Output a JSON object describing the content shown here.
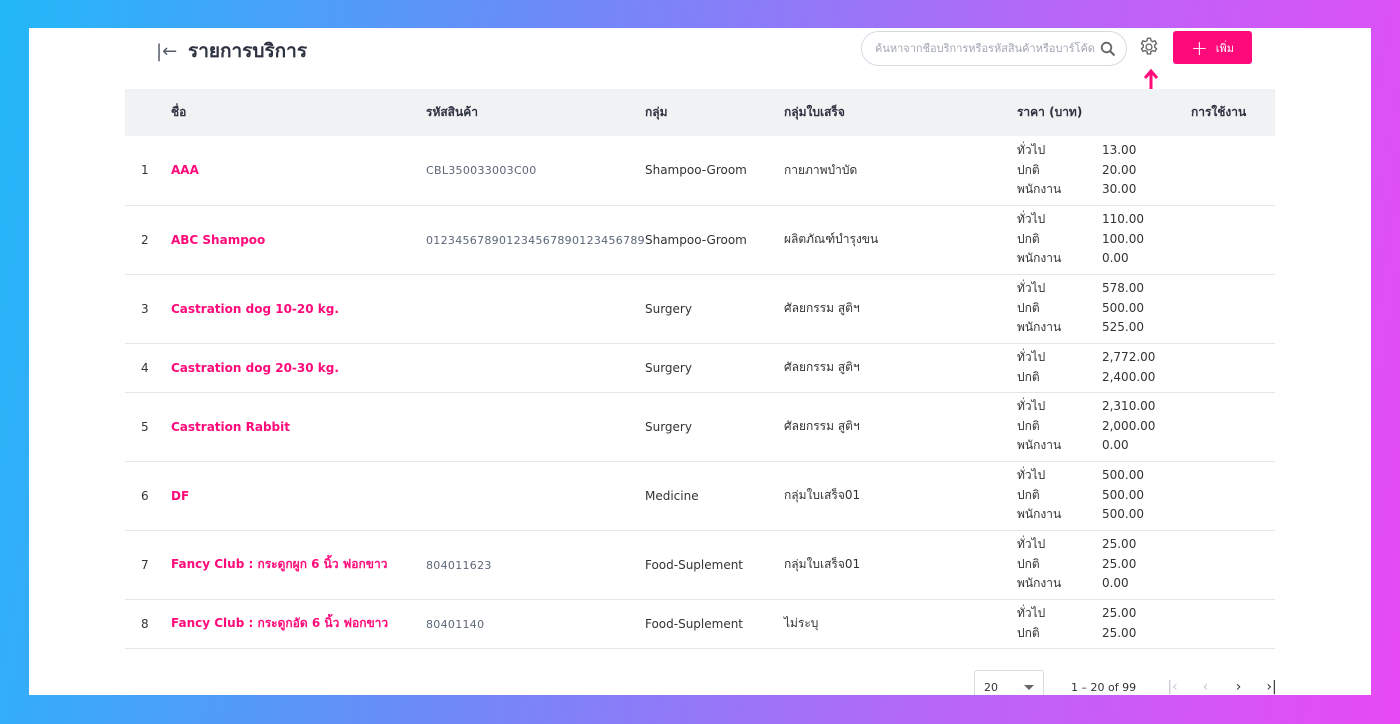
{
  "header": {
    "title": "รายการบริการ",
    "search_placeholder": "ค้นหาจากชื่อบริการหรือรหัสสินค้าหรือบาร์โค้ด",
    "add_label": "เพิ่ม"
  },
  "accent_color": "#ff0a7a",
  "table": {
    "columns": [
      "",
      "ชื่อ",
      "รหัสสินค้า",
      "กลุ่ม",
      "กลุ่มใบเสร็จ",
      "ราคา (บาท)",
      "การใช้งาน"
    ],
    "rows": [
      {
        "index": "1",
        "name": "AAA",
        "code": "CBL350033003C00",
        "group": "Shampoo-Groom",
        "receipt_group": "กายภาพบำบัด",
        "prices": [
          [
            "ทั่วไป",
            "13.00"
          ],
          [
            "ปกติ",
            "20.00"
          ],
          [
            "พนักงาน",
            "30.00"
          ]
        ]
      },
      {
        "index": "2",
        "name": "ABC Shampoo",
        "code": "012345678901234567890123456789",
        "group": "Shampoo-Groom",
        "receipt_group": "ผลิตภัณฑ์บำรุงขน",
        "prices": [
          [
            "ทั่วไป",
            "110.00"
          ],
          [
            "ปกติ",
            "100.00"
          ],
          [
            "พนักงาน",
            "0.00"
          ]
        ]
      },
      {
        "index": "3",
        "name": "Castration dog 10-20 kg.",
        "code": "",
        "group": "Surgery",
        "receipt_group": "ศัลยกรรม สูติฯ",
        "prices": [
          [
            "ทั่วไป",
            "578.00"
          ],
          [
            "ปกติ",
            "500.00"
          ],
          [
            "พนักงาน",
            "525.00"
          ]
        ]
      },
      {
        "index": "4",
        "name": "Castration dog 20-30 kg.",
        "code": "",
        "group": "Surgery",
        "receipt_group": "ศัลยกรรม สูติฯ",
        "prices": [
          [
            "ทั่วไป",
            "2,772.00"
          ],
          [
            "ปกติ",
            "2,400.00"
          ]
        ]
      },
      {
        "index": "5",
        "name": "Castration Rabbit",
        "code": "",
        "group": "Surgery",
        "receipt_group": "ศัลยกรรม สูติฯ",
        "prices": [
          [
            "ทั่วไป",
            "2,310.00"
          ],
          [
            "ปกติ",
            "2,000.00"
          ],
          [
            "พนักงาน",
            "0.00"
          ]
        ]
      },
      {
        "index": "6",
        "name": "DF",
        "code": "",
        "group": "Medicine",
        "receipt_group": "กลุ่มใบเสร็จ01",
        "prices": [
          [
            "ทั่วไป",
            "500.00"
          ],
          [
            "ปกติ",
            "500.00"
          ],
          [
            "พนักงาน",
            "500.00"
          ]
        ]
      },
      {
        "index": "7",
        "name": "Fancy Club : กระดูกผูก 6 นิ้ว ฟอกขาว",
        "code": "804011623",
        "group": "Food-Suplement",
        "receipt_group": "กลุ่มใบเสร็จ01",
        "prices": [
          [
            "ทั่วไป",
            "25.00"
          ],
          [
            "ปกติ",
            "25.00"
          ],
          [
            "พนักงาน",
            "0.00"
          ]
        ]
      },
      {
        "index": "8",
        "name": "Fancy Club : กระดูกอัด 6 นิ้ว ฟอกขาว",
        "code": "80401140",
        "group": "Food-Suplement",
        "receipt_group": "ไม่ระบุ",
        "prices": [
          [
            "ทั่วไป",
            "25.00"
          ],
          [
            "ปกติ",
            "25.00"
          ]
        ]
      }
    ]
  },
  "pagination": {
    "page_size": "20",
    "range": "1 – 20 of 99"
  }
}
